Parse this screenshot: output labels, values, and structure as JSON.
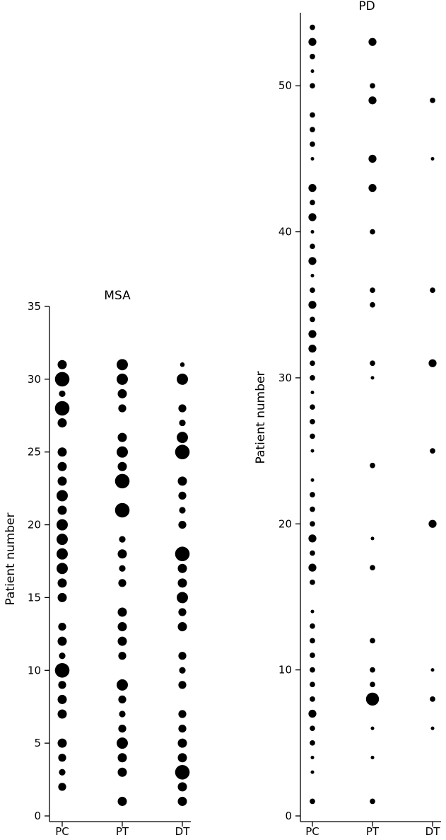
{
  "chart_data": [
    {
      "type": "scatter",
      "title": "MSA",
      "xlabel": "",
      "ylabel": "Patient number",
      "categories": [
        "PC",
        "PT",
        "DT"
      ],
      "ylim": [
        0,
        35
      ],
      "yticks": [
        0,
        5,
        10,
        15,
        20,
        25,
        30,
        35
      ],
      "points": [
        {
          "x": "PC",
          "y": 31,
          "size": 2
        },
        {
          "x": "PC",
          "y": 30,
          "size": 5
        },
        {
          "x": "PC",
          "y": 29,
          "size": 1
        },
        {
          "x": "PC",
          "y": 28,
          "size": 5
        },
        {
          "x": "PC",
          "y": 27,
          "size": 2
        },
        {
          "x": "PC",
          "y": 25,
          "size": 2
        },
        {
          "x": "PC",
          "y": 24,
          "size": 2
        },
        {
          "x": "PC",
          "y": 23,
          "size": 2
        },
        {
          "x": "PC",
          "y": 22,
          "size": 3
        },
        {
          "x": "PC",
          "y": 21,
          "size": 2
        },
        {
          "x": "PC",
          "y": 20,
          "size": 3
        },
        {
          "x": "PC",
          "y": 19,
          "size": 3
        },
        {
          "x": "PC",
          "y": 18,
          "size": 3
        },
        {
          "x": "PC",
          "y": 17,
          "size": 3
        },
        {
          "x": "PC",
          "y": 16,
          "size": 2
        },
        {
          "x": "PC",
          "y": 15,
          "size": 2
        },
        {
          "x": "PC",
          "y": 13,
          "size": 1.5
        },
        {
          "x": "PC",
          "y": 12,
          "size": 2
        },
        {
          "x": "PC",
          "y": 11,
          "size": 1
        },
        {
          "x": "PC",
          "y": 10,
          "size": 5
        },
        {
          "x": "PC",
          "y": 9,
          "size": 1.5
        },
        {
          "x": "PC",
          "y": 8,
          "size": 2
        },
        {
          "x": "PC",
          "y": 7,
          "size": 2
        },
        {
          "x": "PC",
          "y": 5,
          "size": 2
        },
        {
          "x": "PC",
          "y": 4,
          "size": 1.5
        },
        {
          "x": "PC",
          "y": 3,
          "size": 1
        },
        {
          "x": "PC",
          "y": 2,
          "size": 1.5
        },
        {
          "x": "PT",
          "y": 31,
          "size": 3
        },
        {
          "x": "PT",
          "y": 30,
          "size": 3
        },
        {
          "x": "PT",
          "y": 29,
          "size": 2
        },
        {
          "x": "PT",
          "y": 28,
          "size": 1.5
        },
        {
          "x": "PT",
          "y": 26,
          "size": 2
        },
        {
          "x": "PT",
          "y": 25,
          "size": 3
        },
        {
          "x": "PT",
          "y": 24,
          "size": 2
        },
        {
          "x": "PT",
          "y": 23,
          "size": 5
        },
        {
          "x": "PT",
          "y": 21,
          "size": 5
        },
        {
          "x": "PT",
          "y": 19,
          "size": 1
        },
        {
          "x": "PT",
          "y": 18,
          "size": 2
        },
        {
          "x": "PT",
          "y": 17,
          "size": 1
        },
        {
          "x": "PT",
          "y": 16,
          "size": 1.5
        },
        {
          "x": "PT",
          "y": 14,
          "size": 2
        },
        {
          "x": "PT",
          "y": 13,
          "size": 2
        },
        {
          "x": "PT",
          "y": 12,
          "size": 2
        },
        {
          "x": "PT",
          "y": 11,
          "size": 1.5
        },
        {
          "x": "PT",
          "y": 9,
          "size": 3
        },
        {
          "x": "PT",
          "y": 8,
          "size": 1.5
        },
        {
          "x": "PT",
          "y": 7,
          "size": 1
        },
        {
          "x": "PT",
          "y": 6,
          "size": 1.5
        },
        {
          "x": "PT",
          "y": 5,
          "size": 3
        },
        {
          "x": "PT",
          "y": 4,
          "size": 2
        },
        {
          "x": "PT",
          "y": 3,
          "size": 2
        },
        {
          "x": "PT",
          "y": 1,
          "size": 2
        },
        {
          "x": "DT",
          "y": 31,
          "size": 0.5
        },
        {
          "x": "DT",
          "y": 30,
          "size": 3
        },
        {
          "x": "DT",
          "y": 28,
          "size": 1.5
        },
        {
          "x": "DT",
          "y": 27,
          "size": 1
        },
        {
          "x": "DT",
          "y": 26,
          "size": 3
        },
        {
          "x": "DT",
          "y": 25,
          "size": 5
        },
        {
          "x": "DT",
          "y": 23,
          "size": 2
        },
        {
          "x": "DT",
          "y": 22,
          "size": 1.5
        },
        {
          "x": "DT",
          "y": 21,
          "size": 1
        },
        {
          "x": "DT",
          "y": 20,
          "size": 1.5
        },
        {
          "x": "DT",
          "y": 18,
          "size": 5
        },
        {
          "x": "DT",
          "y": 17,
          "size": 2
        },
        {
          "x": "DT",
          "y": 16,
          "size": 2
        },
        {
          "x": "DT",
          "y": 15,
          "size": 3
        },
        {
          "x": "DT",
          "y": 14,
          "size": 1.5
        },
        {
          "x": "DT",
          "y": 13,
          "size": 2
        },
        {
          "x": "DT",
          "y": 11,
          "size": 1.5
        },
        {
          "x": "DT",
          "y": 10,
          "size": 1
        },
        {
          "x": "DT",
          "y": 9,
          "size": 1.5
        },
        {
          "x": "DT",
          "y": 7,
          "size": 1.5
        },
        {
          "x": "DT",
          "y": 6,
          "size": 1.5
        },
        {
          "x": "DT",
          "y": 5,
          "size": 2
        },
        {
          "x": "DT",
          "y": 4,
          "size": 2
        },
        {
          "x": "DT",
          "y": 3,
          "size": 5
        },
        {
          "x": "DT",
          "y": 2,
          "size": 2
        },
        {
          "x": "DT",
          "y": 1,
          "size": 2
        }
      ]
    },
    {
      "type": "scatter",
      "title": "PD",
      "xlabel": "",
      "ylabel": "Patient number",
      "categories": [
        "PC",
        "PT",
        "DT"
      ],
      "ylim": [
        0,
        55
      ],
      "yticks": [
        0,
        10,
        20,
        30,
        40,
        50
      ],
      "points": [
        {
          "x": "PC",
          "y": 54,
          "size": 0.7
        },
        {
          "x": "PC",
          "y": 53,
          "size": 1.5
        },
        {
          "x": "PC",
          "y": 52,
          "size": 0.7
        },
        {
          "x": "PC",
          "y": 51,
          "size": 0.3
        },
        {
          "x": "PC",
          "y": 50,
          "size": 0.7
        },
        {
          "x": "PC",
          "y": 48,
          "size": 0.7
        },
        {
          "x": "PC",
          "y": 47,
          "size": 0.7
        },
        {
          "x": "PC",
          "y": 46,
          "size": 0.7
        },
        {
          "x": "PC",
          "y": 45,
          "size": 0.3
        },
        {
          "x": "PC",
          "y": 43,
          "size": 1.5
        },
        {
          "x": "PC",
          "y": 42,
          "size": 0.7
        },
        {
          "x": "PC",
          "y": 41,
          "size": 1.5
        },
        {
          "x": "PC",
          "y": 40,
          "size": 0.3
        },
        {
          "x": "PC",
          "y": 39,
          "size": 0.7
        },
        {
          "x": "PC",
          "y": 38,
          "size": 1.5
        },
        {
          "x": "PC",
          "y": 37,
          "size": 0.3
        },
        {
          "x": "PC",
          "y": 36,
          "size": 0.7
        },
        {
          "x": "PC",
          "y": 35,
          "size": 1.5
        },
        {
          "x": "PC",
          "y": 34,
          "size": 0.7
        },
        {
          "x": "PC",
          "y": 33,
          "size": 1.5
        },
        {
          "x": "PC",
          "y": 32,
          "size": 1.5
        },
        {
          "x": "PC",
          "y": 31,
          "size": 0.7
        },
        {
          "x": "PC",
          "y": 30,
          "size": 0.7
        },
        {
          "x": "PC",
          "y": 29,
          "size": 0.3
        },
        {
          "x": "PC",
          "y": 28,
          "size": 0.7
        },
        {
          "x": "PC",
          "y": 27,
          "size": 0.7
        },
        {
          "x": "PC",
          "y": 26,
          "size": 0.7
        },
        {
          "x": "PC",
          "y": 25,
          "size": 0.3
        },
        {
          "x": "PC",
          "y": 23,
          "size": 0.3
        },
        {
          "x": "PC",
          "y": 22,
          "size": 0.7
        },
        {
          "x": "PC",
          "y": 21,
          "size": 0.7
        },
        {
          "x": "PC",
          "y": 20,
          "size": 0.7
        },
        {
          "x": "PC",
          "y": 19,
          "size": 1.5
        },
        {
          "x": "PC",
          "y": 18,
          "size": 0.7
        },
        {
          "x": "PC",
          "y": 17,
          "size": 1.5
        },
        {
          "x": "PC",
          "y": 16,
          "size": 0.7
        },
        {
          "x": "PC",
          "y": 14,
          "size": 0.3
        },
        {
          "x": "PC",
          "y": 13,
          "size": 0.7
        },
        {
          "x": "PC",
          "y": 12,
          "size": 0.7
        },
        {
          "x": "PC",
          "y": 11,
          "size": 0.7
        },
        {
          "x": "PC",
          "y": 10,
          "size": 0.7
        },
        {
          "x": "PC",
          "y": 9,
          "size": 0.7
        },
        {
          "x": "PC",
          "y": 8,
          "size": 0.7
        },
        {
          "x": "PC",
          "y": 7,
          "size": 1.5
        },
        {
          "x": "PC",
          "y": 6,
          "size": 0.7
        },
        {
          "x": "PC",
          "y": 5,
          "size": 0.7
        },
        {
          "x": "PC",
          "y": 4,
          "size": 0.3
        },
        {
          "x": "PC",
          "y": 3,
          "size": 0.3
        },
        {
          "x": "PC",
          "y": 1,
          "size": 0.7
        },
        {
          "x": "PT",
          "y": 53,
          "size": 1.5
        },
        {
          "x": "PT",
          "y": 50,
          "size": 0.7
        },
        {
          "x": "PT",
          "y": 49,
          "size": 1.5
        },
        {
          "x": "PT",
          "y": 45,
          "size": 1.5
        },
        {
          "x": "PT",
          "y": 43,
          "size": 1.5
        },
        {
          "x": "PT",
          "y": 40,
          "size": 0.7
        },
        {
          "x": "PT",
          "y": 36,
          "size": 0.7
        },
        {
          "x": "PT",
          "y": 35,
          "size": 0.7
        },
        {
          "x": "PT",
          "y": 31,
          "size": 0.7
        },
        {
          "x": "PT",
          "y": 30,
          "size": 0.3
        },
        {
          "x": "PT",
          "y": 24,
          "size": 0.7
        },
        {
          "x": "PT",
          "y": 19,
          "size": 0.3
        },
        {
          "x": "PT",
          "y": 17,
          "size": 0.7
        },
        {
          "x": "PT",
          "y": 12,
          "size": 0.7
        },
        {
          "x": "PT",
          "y": 10,
          "size": 0.7
        },
        {
          "x": "PT",
          "y": 9,
          "size": 0.7
        },
        {
          "x": "PT",
          "y": 8,
          "size": 4
        },
        {
          "x": "PT",
          "y": 6,
          "size": 0.3
        },
        {
          "x": "PT",
          "y": 4,
          "size": 0.3
        },
        {
          "x": "PT",
          "y": 1,
          "size": 0.7
        },
        {
          "x": "DT",
          "y": 49,
          "size": 0.7
        },
        {
          "x": "DT",
          "y": 45,
          "size": 0.3
        },
        {
          "x": "DT",
          "y": 36,
          "size": 0.7
        },
        {
          "x": "DT",
          "y": 31,
          "size": 1.5
        },
        {
          "x": "DT",
          "y": 25,
          "size": 0.7
        },
        {
          "x": "DT",
          "y": 20,
          "size": 1.5
        },
        {
          "x": "DT",
          "y": 10,
          "size": 0.3
        },
        {
          "x": "DT",
          "y": 8,
          "size": 0.7
        },
        {
          "x": "DT",
          "y": 6,
          "size": 0.3
        }
      ]
    }
  ]
}
